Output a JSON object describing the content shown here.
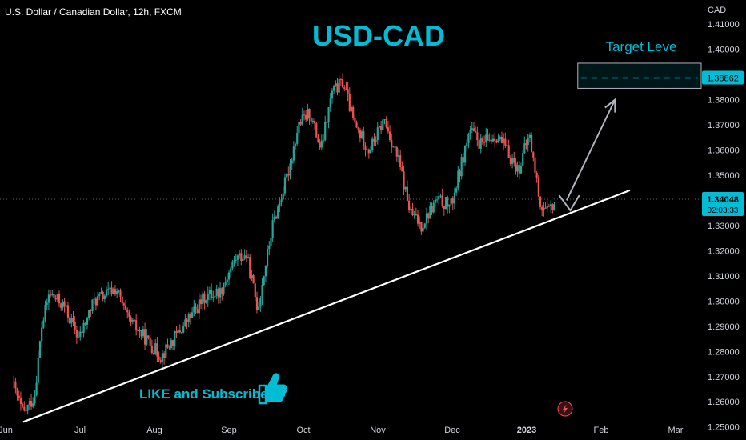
{
  "header": {
    "symbol_title": "U.S. Dollar / Canadian Dollar, 12h, FXCM",
    "currency": "CAD"
  },
  "colors": {
    "background": "#000000",
    "bull": "#26a69a",
    "bear": "#ef5350",
    "accent": "#00bcd4",
    "trendline": "#ffffff",
    "arrow": "#b2b5be",
    "axis_text": "#d1d4dc",
    "price_tag": "#00bcd4"
  },
  "chart_data": {
    "type": "candlestick",
    "title": "USD-CAD",
    "ylim": [
      1.248,
      1.418
    ],
    "yticks": [
      "1.25000",
      "1.26000",
      "1.27000",
      "1.28000",
      "1.29000",
      "1.30000",
      "1.31000",
      "1.32000",
      "1.33000",
      "1.35000",
      "1.36000",
      "1.37000",
      "1.38000",
      "1.40000",
      "1.41000"
    ],
    "xticks": [
      "Jun",
      "Jul",
      "Aug",
      "Sep",
      "Oct",
      "Nov",
      "Dec",
      "2023",
      "Feb",
      "Mar"
    ],
    "xlim_months": [
      0,
      9.8
    ],
    "key_closes": [
      {
        "t": 0.0,
        "p": 1.268
      },
      {
        "t": 0.15,
        "p": 1.255
      },
      {
        "t": 0.3,
        "p": 1.262
      },
      {
        "t": 0.4,
        "p": 1.29
      },
      {
        "t": 0.5,
        "p": 1.303
      },
      {
        "t": 0.7,
        "p": 1.298
      },
      {
        "t": 0.9,
        "p": 1.285
      },
      {
        "t": 1.1,
        "p": 1.3
      },
      {
        "t": 1.4,
        "p": 1.305
      },
      {
        "t": 1.55,
        "p": 1.293
      },
      {
        "t": 1.8,
        "p": 1.285
      },
      {
        "t": 2.0,
        "p": 1.278
      },
      {
        "t": 2.3,
        "p": 1.29
      },
      {
        "t": 2.6,
        "p": 1.302
      },
      {
        "t": 2.8,
        "p": 1.304
      },
      {
        "t": 3.0,
        "p": 1.317
      },
      {
        "t": 3.15,
        "p": 1.318
      },
      {
        "t": 3.3,
        "p": 1.297
      },
      {
        "t": 3.5,
        "p": 1.33
      },
      {
        "t": 3.7,
        "p": 1.35
      },
      {
        "t": 3.85,
        "p": 1.37
      },
      {
        "t": 4.0,
        "p": 1.375
      },
      {
        "t": 4.15,
        "p": 1.36
      },
      {
        "t": 4.3,
        "p": 1.383
      },
      {
        "t": 4.45,
        "p": 1.387
      },
      {
        "t": 4.6,
        "p": 1.37
      },
      {
        "t": 4.8,
        "p": 1.36
      },
      {
        "t": 5.0,
        "p": 1.372
      },
      {
        "t": 5.2,
        "p": 1.355
      },
      {
        "t": 5.35,
        "p": 1.335
      },
      {
        "t": 5.5,
        "p": 1.33
      },
      {
        "t": 5.7,
        "p": 1.34
      },
      {
        "t": 5.9,
        "p": 1.338
      },
      {
        "t": 6.0,
        "p": 1.35
      },
      {
        "t": 6.15,
        "p": 1.368
      },
      {
        "t": 6.3,
        "p": 1.362
      },
      {
        "t": 6.5,
        "p": 1.366
      },
      {
        "t": 6.6,
        "p": 1.362
      },
      {
        "t": 6.8,
        "p": 1.352
      },
      {
        "t": 6.95,
        "p": 1.366
      },
      {
        "t": 7.1,
        "p": 1.338
      },
      {
        "t": 7.2,
        "p": 1.335
      },
      {
        "t": 7.3,
        "p": 1.34
      }
    ],
    "current_price": {
      "value": 1.34048,
      "label": "1.34048",
      "countdown": "02:03:33"
    },
    "target": {
      "value": 1.38862,
      "label": "1.38862",
      "text": "Target Leve",
      "zone": [
        1.3845,
        1.3945
      ],
      "t_start": 7.6
    },
    "trendline": {
      "t1": 0.15,
      "p1": 1.252,
      "t2": 8.3,
      "p2": 1.344
    },
    "arrow": {
      "t1": 7.45,
      "p1": 1.34,
      "t2": 8.1,
      "p2": 1.38
    },
    "tick_arrow": {
      "points": [
        {
          "t": 7.35,
          "p": 1.342
        },
        {
          "t": 7.5,
          "p": 1.336
        },
        {
          "t": 7.62,
          "p": 1.342
        }
      ]
    },
    "annotations": [
      {
        "text": "LIKE and Subscribe",
        "t": 1.65,
        "p": 1.259
      }
    ]
  }
}
